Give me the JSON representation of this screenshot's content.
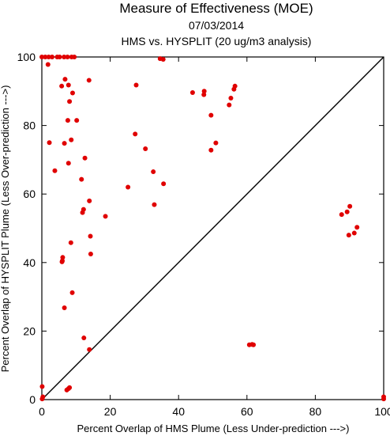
{
  "chart_data": {
    "type": "scatter",
    "title": "Measure of Effectiveness (MOE)",
    "date": "07/03/2014",
    "subtitle": "HMS vs. HYSPLIT  (20 ug/m3 analysis)",
    "xlabel": "Percent Overlap of HMS Plume (Less Under-prediction --->)",
    "ylabel": "Percent Overlap of HYSPLIT Plume (Less Over-prediction --->)",
    "xlim": [
      0,
      100
    ],
    "ylim": [
      0,
      100
    ],
    "x_ticks": [
      "0",
      "20",
      "40",
      "60",
      "80",
      "100"
    ],
    "y_ticks": [
      "0",
      "20",
      "40",
      "60",
      "80",
      "100"
    ],
    "grid": false,
    "legend": "none",
    "reference_line": "y = x diagonal",
    "point_color": "#e00000",
    "line_color": "#000000",
    "points": [
      [
        0,
        100
      ],
      [
        1,
        100
      ],
      [
        2,
        100
      ],
      [
        3,
        100
      ],
      [
        4.5,
        100
      ],
      [
        5.2,
        100
      ],
      [
        6.5,
        100
      ],
      [
        7.5,
        100
      ],
      [
        9.5,
        100
      ],
      [
        8.7,
        100
      ],
      [
        1.8,
        97.8
      ],
      [
        5.8,
        91.5
      ],
      [
        6.8,
        93.5
      ],
      [
        7.8,
        91.8
      ],
      [
        9.0,
        89.5
      ],
      [
        13.8,
        93.2
      ],
      [
        27.6,
        91.8
      ],
      [
        34.6,
        99.5
      ],
      [
        35.5,
        99.3
      ],
      [
        7.6,
        81.5
      ],
      [
        8.1,
        87
      ],
      [
        10.2,
        81.5
      ],
      [
        8.6,
        75.8
      ],
      [
        2.2,
        75
      ],
      [
        6.6,
        74.8
      ],
      [
        27.3,
        77.5
      ],
      [
        30.3,
        73.2
      ],
      [
        3.8,
        66.8
      ],
      [
        7.8,
        69
      ],
      [
        12.6,
        70.5
      ],
      [
        11.6,
        64.3
      ],
      [
        13.9,
        58
      ],
      [
        12.2,
        55.5
      ],
      [
        11.9,
        54.6
      ],
      [
        18.6,
        53.5
      ],
      [
        25.2,
        62
      ],
      [
        32.6,
        66.5
      ],
      [
        35.6,
        63
      ],
      [
        32.9,
        56.9
      ],
      [
        14.2,
        47.7
      ],
      [
        8.5,
        45.8
      ],
      [
        14.3,
        42.5
      ],
      [
        6.1,
        41.5
      ],
      [
        6.0,
        40.5
      ],
      [
        5.9,
        40.2
      ],
      [
        8.9,
        31.2
      ],
      [
        6.6,
        26.8
      ],
      [
        12.3,
        18
      ],
      [
        13.9,
        14.6
      ],
      [
        7.3,
        2.8
      ],
      [
        7.8,
        3.2
      ],
      [
        8.1,
        3.5
      ],
      [
        0.1,
        3.8
      ],
      [
        0.3,
        0.8
      ],
      [
        0.1,
        0.2
      ],
      [
        44.1,
        89.6
      ],
      [
        47.4,
        89
      ],
      [
        47.5,
        90
      ],
      [
        54.8,
        86
      ],
      [
        55.3,
        88
      ],
      [
        56.2,
        90.6
      ],
      [
        56.5,
        91.5
      ],
      [
        49.5,
        83
      ],
      [
        49.5,
        72.8
      ],
      [
        50.9,
        74.9
      ],
      [
        60.7,
        16
      ],
      [
        61.5,
        16.1
      ],
      [
        61.9,
        16
      ],
      [
        87.7,
        54
      ],
      [
        89.3,
        54.8
      ],
      [
        90.1,
        56.4
      ],
      [
        89.8,
        48
      ],
      [
        91.4,
        48.6
      ],
      [
        92.2,
        50.3
      ],
      [
        100,
        0.8
      ],
      [
        100,
        0.2
      ]
    ]
  }
}
